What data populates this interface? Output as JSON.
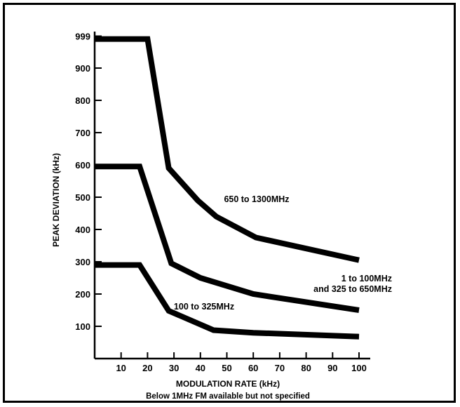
{
  "chart_data": {
    "type": "line",
    "title": "",
    "xlabel": "MODULATION RATE (kHz)",
    "ylabel": "PEAK DEVIATION (kHz)",
    "note": "Below 1MHz FM available but not specified",
    "xlim": [
      0,
      100
    ],
    "ylim": [
      0,
      999
    ],
    "x_ticks": [
      10,
      20,
      30,
      40,
      50,
      60,
      70,
      80,
      90,
      100
    ],
    "y_ticks": [
      100,
      200,
      300,
      400,
      500,
      600,
      700,
      800,
      900,
      999
    ],
    "grid": false,
    "legend": "none",
    "series": [
      {
        "name": "650 to 1300MHz",
        "label_lines": [
          "650 to 1300MHz"
        ],
        "points": [
          [
            0,
            990
          ],
          [
            20,
            990
          ],
          [
            28,
            590
          ],
          [
            39,
            490
          ],
          [
            46,
            440
          ],
          [
            61,
            375
          ],
          [
            100,
            305
          ]
        ]
      },
      {
        "name": "1 to 100MHz and 325 to 650MHz",
        "label_lines": [
          "1 to 100MHz",
          "and 325 to 650MHz"
        ],
        "points": [
          [
            0,
            595
          ],
          [
            17,
            595
          ],
          [
            29,
            295
          ],
          [
            40,
            250
          ],
          [
            60,
            200
          ],
          [
            100,
            150
          ]
        ]
      },
      {
        "name": "100 to 325MHz",
        "label_lines": [
          "100 to 325MHz"
        ],
        "points": [
          [
            0,
            290
          ],
          [
            17,
            290
          ],
          [
            28,
            148
          ],
          [
            45,
            88
          ],
          [
            60,
            80
          ],
          [
            100,
            68
          ]
        ]
      }
    ]
  }
}
